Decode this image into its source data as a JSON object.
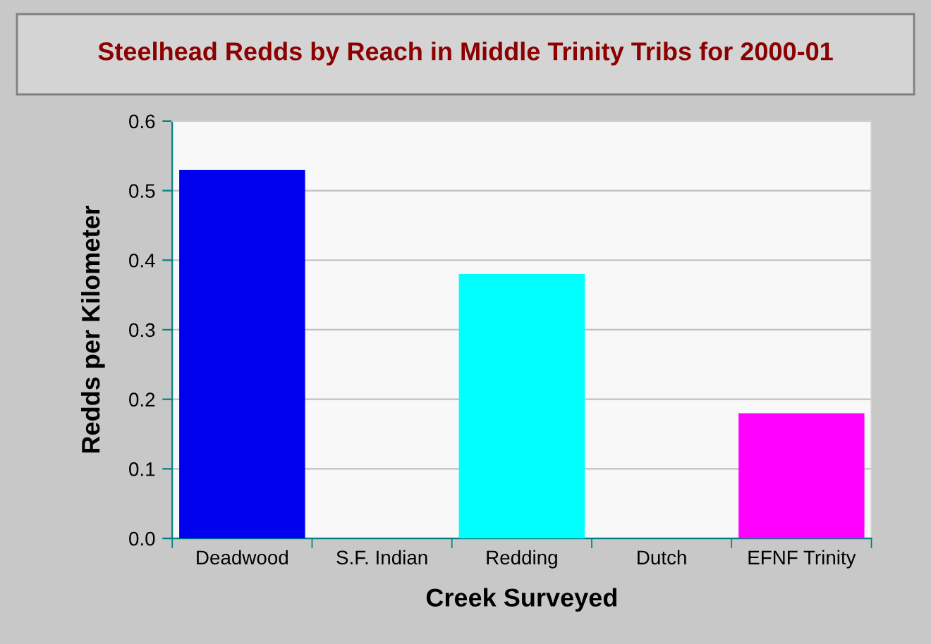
{
  "chart_data": {
    "type": "bar",
    "title": "Steelhead Redds by Reach in Middle Trinity Tribs for 2000-01",
    "xlabel": "Creek Surveyed",
    "ylabel": "Redds per Kilometer",
    "categories": [
      "Deadwood",
      "S.F. Indian",
      "Redding",
      "Dutch",
      "EFNF Trinity"
    ],
    "values": [
      0.53,
      0,
      0.38,
      0,
      0.18
    ],
    "colors": [
      "#0000ee",
      "#00aa00",
      "#00ffff",
      "#ff0000",
      "#ff00ff"
    ],
    "ylim": [
      0,
      0.6
    ],
    "yticks": [
      {
        "value": 0,
        "label": "0.0"
      },
      0.1,
      0.2,
      0.3,
      0.4,
      0.5,
      0.6
    ],
    "grid": "y",
    "legend": false
  }
}
